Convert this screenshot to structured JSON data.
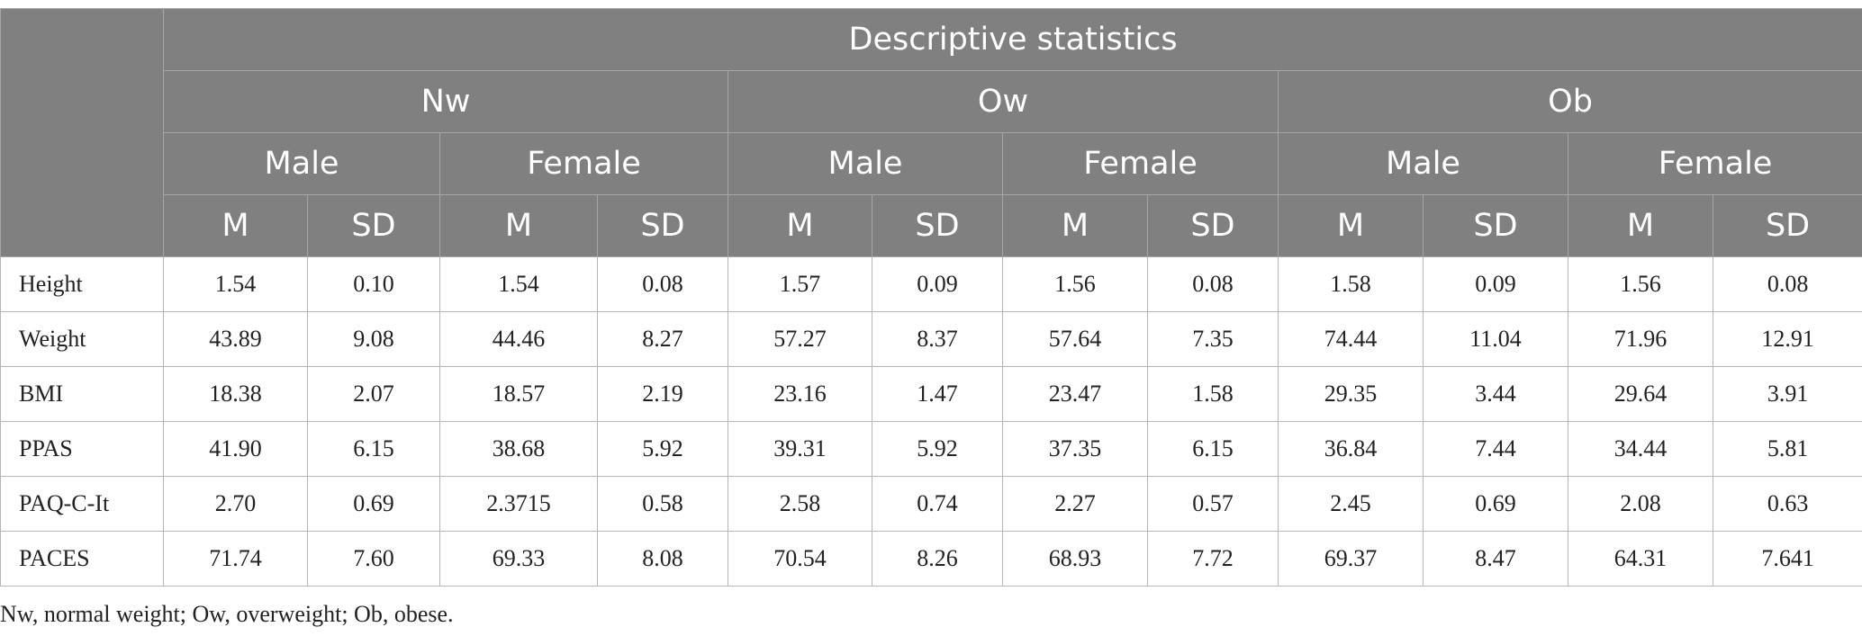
{
  "header": {
    "title": "Descriptive statistics",
    "groups": [
      "Nw",
      "Ow",
      "Ob"
    ],
    "sexes": [
      "Male",
      "Female",
      "Male",
      "Female",
      "Male",
      "Female"
    ],
    "stats": [
      "M",
      "SD",
      "M",
      "SD",
      "M",
      "SD",
      "M",
      "SD",
      "M",
      "SD",
      "M",
      "SD"
    ]
  },
  "rows": [
    {
      "label": "Height",
      "values": [
        "1.54",
        "0.10",
        "1.54",
        "0.08",
        "1.57",
        "0.09",
        "1.56",
        "0.08",
        "1.58",
        "0.09",
        "1.56",
        "0.08"
      ]
    },
    {
      "label": "Weight",
      "values": [
        "43.89",
        "9.08",
        "44.46",
        "8.27",
        "57.27",
        "8.37",
        "57.64",
        "7.35",
        "74.44",
        "11.04",
        "71.96",
        "12.91"
      ]
    },
    {
      "label": "BMI",
      "values": [
        "18.38",
        "2.07",
        "18.57",
        "2.19",
        "23.16",
        "1.47",
        "23.47",
        "1.58",
        "29.35",
        "3.44",
        "29.64",
        "3.91"
      ]
    },
    {
      "label": "PPAS",
      "values": [
        "41.90",
        "6.15",
        "38.68",
        "5.92",
        "39.31",
        "5.92",
        "37.35",
        "6.15",
        "36.84",
        "7.44",
        "34.44",
        "5.81"
      ]
    },
    {
      "label": "PAQ-C-It",
      "values": [
        "2.70",
        "0.69",
        "2.3715",
        "0.58",
        "2.58",
        "0.74",
        "2.27",
        "0.57",
        "2.45",
        "0.69",
        "2.08",
        "0.63"
      ]
    },
    {
      "label": "PACES",
      "values": [
        "71.74",
        "7.60",
        "69.33",
        "8.08",
        "70.54",
        "8.26",
        "68.93",
        "7.72",
        "69.37",
        "8.47",
        "64.31",
        "7.641"
      ]
    }
  ],
  "footnote": "Nw, normal weight; Ow, overweight; Ob, obese."
}
